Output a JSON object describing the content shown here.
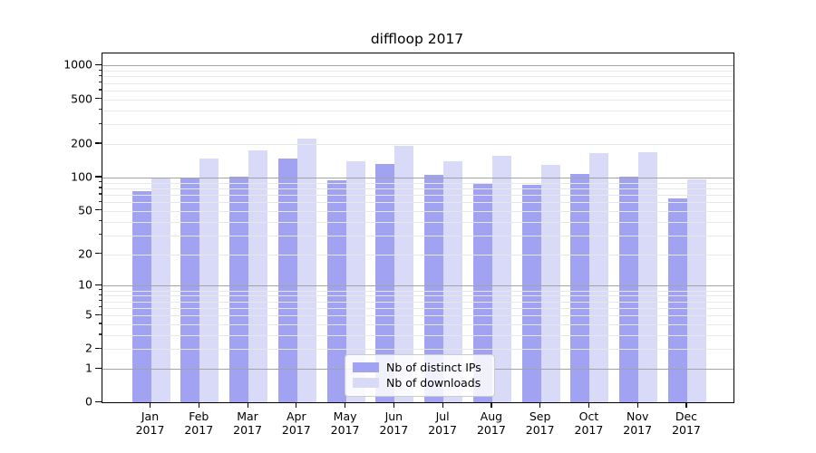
{
  "title": "diffloop 2017",
  "chart_data": {
    "type": "bar",
    "title": "diffloop 2017",
    "categories": [
      "Jan 2017",
      "Feb 2017",
      "Mar 2017",
      "Apr 2017",
      "May 2017",
      "Jun 2017",
      "Jul 2017",
      "Aug 2017",
      "Sep 2017",
      "Oct 2017",
      "Nov 2017",
      "Dec 2017"
    ],
    "series": [
      {
        "name": "Nb of distinct IPs",
        "color": "#a2a2f2",
        "values": [
          75,
          100,
          101,
          148,
          95,
          132,
          106,
          88,
          86,
          107,
          101,
          65
        ]
      },
      {
        "name": "Nb of downloads",
        "color": "#d9d9f8",
        "values": [
          100,
          148,
          175,
          225,
          141,
          193,
          140,
          157,
          130,
          165,
          168,
          97
        ]
      }
    ],
    "xlabel": "",
    "ylabel": "",
    "yscale": "log1p",
    "yticks": [
      0,
      1,
      2,
      5,
      10,
      20,
      50,
      100,
      200,
      500,
      1000
    ],
    "ylim": [
      0,
      1282
    ],
    "grid": "on",
    "legend_position": "bottom-center",
    "colors": {
      "major_grid": "#a3a3a3",
      "minor_grid": "#e7e7e7",
      "axis": "#000000",
      "background": "#ffffff"
    }
  }
}
